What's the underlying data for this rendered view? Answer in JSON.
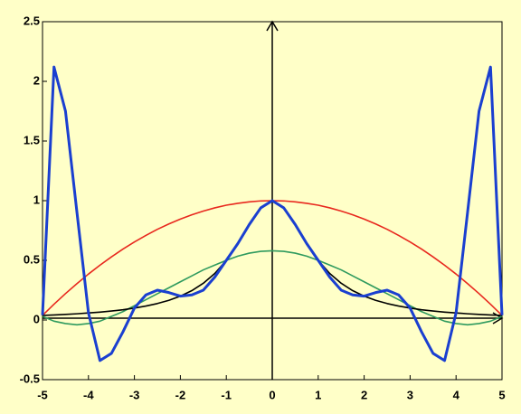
{
  "chart_data": {
    "type": "line",
    "x": [
      -5,
      -4.75,
      -4.5,
      -4.25,
      -4,
      -3.75,
      -3.5,
      -3.25,
      -3,
      -2.75,
      -2.5,
      -2.25,
      -2,
      -1.75,
      -1.5,
      -1.25,
      -1,
      -0.75,
      -0.5,
      -0.25,
      0,
      0.25,
      0.5,
      0.75,
      1,
      1.25,
      1.5,
      1.75,
      2,
      2.25,
      2.5,
      2.75,
      3,
      3.25,
      3.5,
      3.75,
      4,
      4.25,
      4.5,
      4.75,
      5
    ],
    "series": [
      {
        "color": "#e8281e",
        "values": [
          0.038,
          0.132,
          0.221,
          0.305,
          0.385,
          0.459,
          0.529,
          0.594,
          0.654,
          0.709,
          0.76,
          0.805,
          0.846,
          0.882,
          0.913,
          0.94,
          0.962,
          0.978,
          0.99,
          0.998,
          1,
          0.998,
          0.99,
          0.978,
          0.962,
          0.94,
          0.913,
          0.882,
          0.846,
          0.805,
          0.76,
          0.709,
          0.654,
          0.594,
          0.529,
          0.459,
          0.385,
          0.305,
          0.221,
          0.132,
          0.038
        ]
      },
      {
        "color": "#2e9a5e",
        "values": [
          0.03,
          -0.01,
          -0.03,
          -0.04,
          -0.03,
          -0.01,
          0.03,
          0.07,
          0.12,
          0.17,
          0.22,
          0.27,
          0.32,
          0.37,
          0.42,
          0.46,
          0.5,
          0.535,
          0.56,
          0.575,
          0.58,
          0.575,
          0.56,
          0.535,
          0.5,
          0.46,
          0.42,
          0.37,
          0.32,
          0.27,
          0.22,
          0.17,
          0.12,
          0.07,
          0.03,
          -0.01,
          -0.03,
          -0.04,
          -0.03,
          -0.01,
          0.03
        ]
      },
      {
        "color": "#000000",
        "values": [
          0.038,
          0.042,
          0.047,
          0.052,
          0.059,
          0.066,
          0.075,
          0.086,
          0.1,
          0.117,
          0.138,
          0.165,
          0.2,
          0.246,
          0.308,
          0.39,
          0.5,
          0.64,
          0.8,
          0.941,
          1,
          0.941,
          0.8,
          0.64,
          0.5,
          0.39,
          0.308,
          0.246,
          0.2,
          0.165,
          0.138,
          0.117,
          0.1,
          0.086,
          0.075,
          0.066,
          0.059,
          0.052,
          0.047,
          0.042,
          0.038
        ]
      },
      {
        "color": "#1a3fd0",
        "values": [
          0.04,
          2.12,
          1.75,
          0.9,
          0.06,
          -0.34,
          -0.28,
          -0.1,
          0.1,
          0.21,
          0.25,
          0.23,
          0.2,
          0.21,
          0.25,
          0.36,
          0.5,
          0.64,
          0.8,
          0.94,
          1,
          0.94,
          0.8,
          0.64,
          0.5,
          0.36,
          0.25,
          0.21,
          0.2,
          0.23,
          0.25,
          0.21,
          0.1,
          -0.1,
          -0.28,
          -0.34,
          0.06,
          0.9,
          1.75,
          2.12,
          0.04
        ]
      }
    ],
    "xlim": [
      -5,
      5
    ],
    "ylim": [
      -0.5,
      2.5
    ],
    "xticks": [
      -5,
      -4,
      -3,
      -2,
      -1,
      0,
      1,
      2,
      3,
      4,
      5
    ],
    "yticks": [
      -0.5,
      0,
      0.5,
      1,
      1.5,
      2,
      2.5
    ]
  }
}
